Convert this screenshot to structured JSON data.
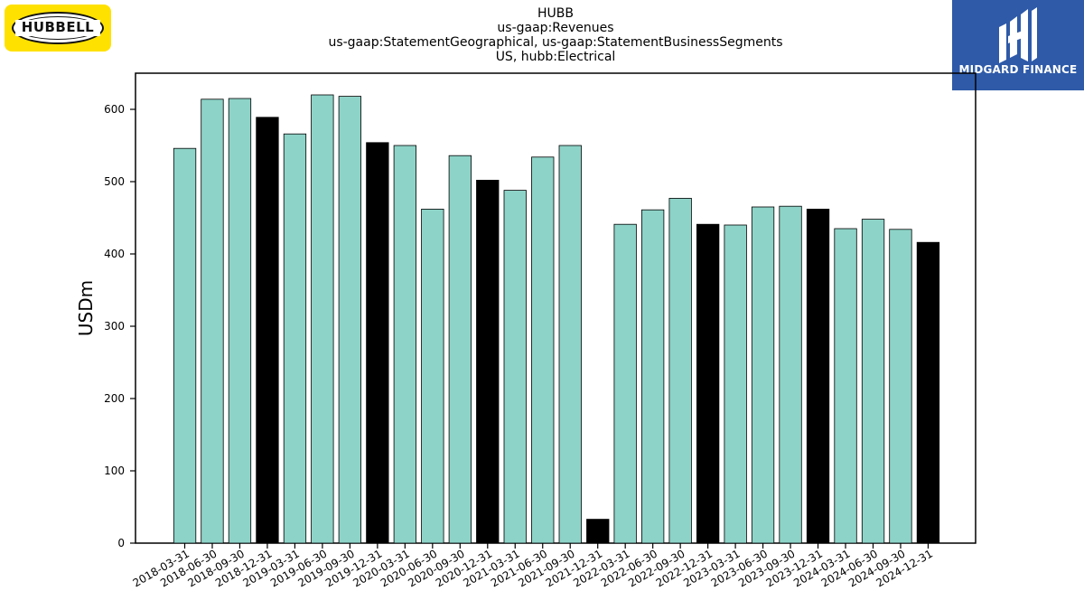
{
  "header": {
    "title_lines": [
      "HUBB",
      "us-gaap:Revenues",
      "us-gaap:StatementGeographical, us-gaap:StatementBusinessSegments",
      "US, hubb:Electrical"
    ]
  },
  "logos": {
    "left_text": "HUBBELL",
    "right_text": "MIDGARD FINANCE"
  },
  "colors": {
    "quarter_bar": "#8dd3c7",
    "year_end_bar": "#000000",
    "bar_edge": "#000000",
    "left_logo_bg": "#ffe100",
    "right_logo_bg": "#2e5aa8"
  },
  "chart_data": {
    "type": "bar",
    "ylabel": "USDm",
    "xlabel": "",
    "ylim": [
      0,
      650
    ],
    "yticks": [
      0,
      100,
      200,
      300,
      400,
      500,
      600
    ],
    "grid": false,
    "categories": [
      "2018-03-31",
      "2018-06-30",
      "2018-09-30",
      "2018-12-31",
      "2019-03-31",
      "2019-06-30",
      "2019-09-30",
      "2019-12-31",
      "2020-03-31",
      "2020-06-30",
      "2020-09-30",
      "2020-12-31",
      "2021-03-31",
      "2021-06-30",
      "2021-09-30",
      "2021-12-31",
      "2022-03-31",
      "2022-06-30",
      "2022-09-30",
      "2022-12-31",
      "2023-03-31",
      "2023-06-30",
      "2023-09-30",
      "2023-12-31",
      "2024-03-31",
      "2024-06-30",
      "2024-09-30",
      "2024-12-31"
    ],
    "values": [
      546,
      614,
      615,
      589,
      566,
      620,
      618,
      554,
      550,
      462,
      536,
      502,
      488,
      534,
      550,
      33,
      441,
      461,
      477,
      441,
      440,
      465,
      466,
      462,
      435,
      448,
      434,
      416
    ],
    "year_end_flags": [
      false,
      false,
      false,
      true,
      false,
      false,
      false,
      true,
      false,
      false,
      false,
      true,
      false,
      false,
      false,
      true,
      false,
      false,
      false,
      true,
      false,
      false,
      false,
      true,
      false,
      false,
      false,
      true
    ]
  }
}
